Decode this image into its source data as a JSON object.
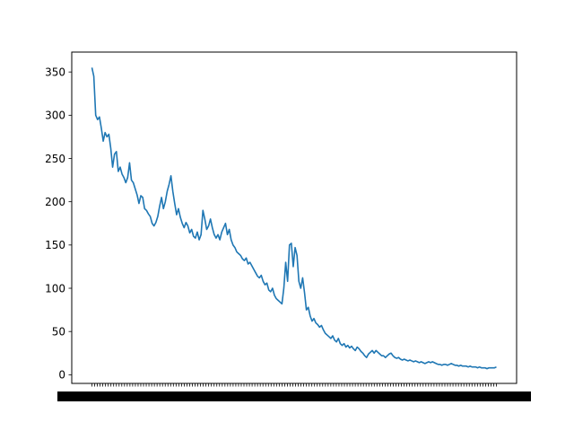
{
  "chart_data": {
    "type": "line",
    "title": "",
    "xlabel": "",
    "ylabel": "",
    "ylim": [
      -10,
      373
    ],
    "yticks": [
      0,
      50,
      100,
      150,
      200,
      250,
      300,
      350
    ],
    "grid": false,
    "legend": "none",
    "line_color": "#1f77b4",
    "x_tick_labels_overlapping": true,
    "series": [
      {
        "values": [
          355,
          345,
          300,
          295,
          298,
          285,
          270,
          280,
          275,
          278,
          262,
          240,
          255,
          258,
          235,
          240,
          232,
          228,
          222,
          228,
          245,
          225,
          222,
          215,
          208,
          198,
          207,
          205,
          192,
          190,
          186,
          183,
          175,
          172,
          176,
          183,
          195,
          205,
          192,
          200,
          212,
          220,
          230,
          212,
          198,
          185,
          192,
          182,
          175,
          170,
          176,
          172,
          164,
          168,
          160,
          158,
          165,
          156,
          162,
          190,
          180,
          168,
          172,
          180,
          170,
          162,
          158,
          162,
          156,
          165,
          170,
          175,
          162,
          168,
          156,
          150,
          147,
          142,
          140,
          138,
          134,
          132,
          135,
          128,
          130,
          126,
          122,
          118,
          114,
          112,
          115,
          108,
          104,
          106,
          98,
          96,
          100,
          92,
          88,
          86,
          84,
          82,
          100,
          130,
          108,
          150,
          152,
          125,
          147,
          138,
          108,
          100,
          112,
          95,
          75,
          78,
          68,
          62,
          65,
          60,
          58,
          55,
          57,
          52,
          48,
          46,
          44,
          42,
          45,
          40,
          38,
          42,
          36,
          34,
          36,
          32,
          34,
          31,
          33,
          30,
          28,
          32,
          30,
          27,
          25,
          22,
          20,
          24,
          26,
          28,
          25,
          28,
          26,
          24,
          22,
          22,
          20,
          22,
          24,
          25,
          22,
          20,
          19,
          20,
          18,
          17,
          18,
          17,
          16,
          17,
          16,
          15,
          16,
          15,
          14,
          15,
          14,
          13,
          14,
          15,
          14,
          15,
          14,
          13,
          12,
          12,
          11,
          12,
          12,
          11,
          12,
          13,
          12,
          11,
          11,
          10,
          11,
          10,
          10,
          10,
          9,
          10,
          9,
          9,
          9,
          8,
          9,
          8,
          8,
          8,
          7,
          8,
          8,
          8,
          8,
          9
        ]
      }
    ]
  }
}
